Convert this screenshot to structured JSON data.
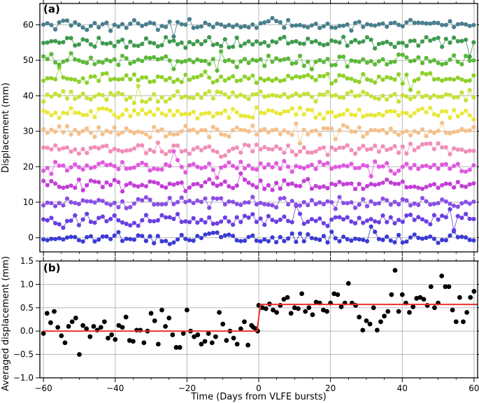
{
  "chart_data": [
    {
      "panel": "(a)",
      "type": "line",
      "ylabel": "Displacement (mm)",
      "xlim": [
        -61,
        61
      ],
      "ylim": [
        -4,
        66
      ],
      "x_ticks": [
        -60,
        -40,
        -20,
        0,
        20,
        40,
        60
      ],
      "y_ticks": [
        0,
        10,
        20,
        30,
        40,
        50,
        60
      ],
      "x_tick_labels": [
        "",
        "",
        "",
        "",
        "",
        "",
        ""
      ],
      "y_tick_labels": [
        "0",
        "10",
        "20",
        "30",
        "40",
        "50",
        "60"
      ],
      "grid": true,
      "series": [
        {
          "offset": 0,
          "color": "#3b3bd4"
        },
        {
          "offset": 5,
          "color": "#6a3fe0"
        },
        {
          "offset": 10,
          "color": "#8a4fe6"
        },
        {
          "offset": 15,
          "color": "#c23fd6"
        },
        {
          "offset": 20,
          "color": "#e05ae0"
        },
        {
          "offset": 25,
          "color": "#f08fb8"
        },
        {
          "offset": 30,
          "color": "#f5c08a"
        },
        {
          "offset": 35,
          "color": "#e8e83a"
        },
        {
          "offset": 40,
          "color": "#c8e03a"
        },
        {
          "offset": 45,
          "color": "#8ed12a"
        },
        {
          "offset": 50,
          "color": "#5cb83a"
        },
        {
          "offset": 55,
          "color": "#3e9a4e"
        },
        {
          "offset": 60,
          "color": "#4a7f8c"
        }
      ]
    },
    {
      "panel": "(b)",
      "type": "scatter",
      "xlabel": "Time (Days from VLFE bursts)",
      "ylabel": "Averaged displacement (mm)",
      "xlim": [
        -61,
        61
      ],
      "ylim": [
        -1.0,
        1.5
      ],
      "x_ticks": [
        -60,
        -40,
        -20,
        0,
        20,
        40,
        60
      ],
      "y_ticks": [
        -1.0,
        -0.5,
        0.0,
        0.5,
        1.0,
        1.5
      ],
      "x_tick_labels": [
        "−60",
        "−40",
        "−20",
        "0",
        "20",
        "40",
        "60"
      ],
      "y_tick_labels": [
        "−1.0",
        "−0.5",
        "0.0",
        "0.5",
        "1.0",
        "1.5"
      ],
      "grid": true,
      "points": [
        [
          -60,
          -0.05
        ],
        [
          -59,
          0.38
        ],
        [
          -58,
          0.18
        ],
        [
          -57,
          0.42
        ],
        [
          -56,
          0.08
        ],
        [
          -55,
          -0.1
        ],
        [
          -54,
          -0.25
        ],
        [
          -53,
          0.1
        ],
        [
          -52,
          0.2
        ],
        [
          -51,
          0.28
        ],
        [
          -50,
          -0.5
        ],
        [
          -49,
          0.12
        ],
        [
          -48,
          0.05
        ],
        [
          -47,
          -0.12
        ],
        [
          -46,
          0.1
        ],
        [
          -45,
          0.02
        ],
        [
          -44,
          0.08
        ],
        [
          -43,
          0.2
        ],
        [
          -42,
          -0.15
        ],
        [
          -41,
          -0.08
        ],
        [
          -40,
          -0.18
        ],
        [
          -39,
          0.12
        ],
        [
          -38,
          0.08
        ],
        [
          -37,
          0.3
        ],
        [
          -36,
          -0.2
        ],
        [
          -35,
          -0.22
        ],
        [
          -34,
          0.02
        ],
        [
          -33,
          0.02
        ],
        [
          -32,
          -0.25
        ],
        [
          -31,
          0.0
        ],
        [
          -30,
          0.38
        ],
        [
          -29,
          0.22
        ],
        [
          -28,
          -0.28
        ],
        [
          -27,
          0.45
        ],
        [
          -26,
          0.1
        ],
        [
          -25,
          0.28
        ],
        [
          -24,
          -0.08
        ],
        [
          -23,
          -0.35
        ],
        [
          -22,
          -0.35
        ],
        [
          -21,
          -0.05
        ],
        [
          -20,
          0.45
        ],
        [
          -19,
          0.0
        ],
        [
          -18,
          -0.12
        ],
        [
          -17,
          -0.08
        ],
        [
          -16,
          -0.28
        ],
        [
          -15,
          -0.22
        ],
        [
          -14,
          -0.05
        ],
        [
          -13,
          -0.25
        ],
        [
          -12,
          -0.12
        ],
        [
          -11,
          0.4
        ],
        [
          -10,
          0.15
        ],
        [
          -9,
          -0.2
        ],
        [
          -8,
          0.0
        ],
        [
          -7,
          -0.15
        ],
        [
          -6,
          -0.28
        ],
        [
          -5,
          0.05
        ],
        [
          -4,
          0.2
        ],
        [
          -3,
          -0.3
        ],
        [
          -2,
          0.12
        ],
        [
          -1.5,
          0.08
        ],
        [
          -0.8,
          0.05
        ],
        [
          -0.3,
          0.0
        ],
        [
          0,
          0.55
        ],
        [
          1,
          0.5
        ],
        [
          2,
          0.48
        ],
        [
          3,
          0.58
        ],
        [
          4,
          0.45
        ],
        [
          5,
          0.4
        ],
        [
          6,
          0.55
        ],
        [
          7,
          0.68
        ],
        [
          8,
          0.72
        ],
        [
          9,
          0.38
        ],
        [
          10,
          0.5
        ],
        [
          11,
          0.48
        ],
        [
          12,
          0.8
        ],
        [
          13,
          0.42
        ],
        [
          14,
          0.5
        ],
        [
          15,
          0.35
        ],
        [
          16,
          0.62
        ],
        [
          17,
          0.6
        ],
        [
          18,
          0.45
        ],
        [
          19,
          0.42
        ],
        [
          20,
          0.6
        ],
        [
          21,
          0.8
        ],
        [
          22,
          0.78
        ],
        [
          23,
          0.52
        ],
        [
          24,
          0.6
        ],
        [
          25,
          1.02
        ],
        [
          26,
          0.6
        ],
        [
          27,
          0.55
        ],
        [
          28,
          0.3
        ],
        [
          29,
          0.02
        ],
        [
          30,
          0.22
        ],
        [
          31,
          0.15
        ],
        [
          32,
          0.5
        ],
        [
          33,
          0.02
        ],
        [
          34,
          0.2
        ],
        [
          35,
          0.32
        ],
        [
          36,
          0.42
        ],
        [
          37,
          0.78
        ],
        [
          38,
          1.3
        ],
        [
          39,
          0.42
        ],
        [
          40,
          0.78
        ],
        [
          41,
          0.6
        ],
        [
          42,
          0.4
        ],
        [
          43,
          0.52
        ],
        [
          44,
          0.7
        ],
        [
          45,
          0.72
        ],
        [
          46,
          0.68
        ],
        [
          47,
          0.55
        ],
        [
          48,
          0.95
        ],
        [
          49,
          0.5
        ],
        [
          50,
          0.6
        ],
        [
          51,
          1.18
        ],
        [
          52,
          0.95
        ],
        [
          53,
          0.95
        ],
        [
          54,
          0.45
        ],
        [
          55,
          0.2
        ],
        [
          56,
          0.72
        ],
        [
          57,
          0.2
        ],
        [
          58,
          0.4
        ],
        [
          59,
          0.72
        ],
        [
          60,
          0.85
        ]
      ],
      "step_fit": {
        "color": "#e8312f",
        "before": 0.0,
        "after": 0.57,
        "step_at": 0
      }
    }
  ]
}
